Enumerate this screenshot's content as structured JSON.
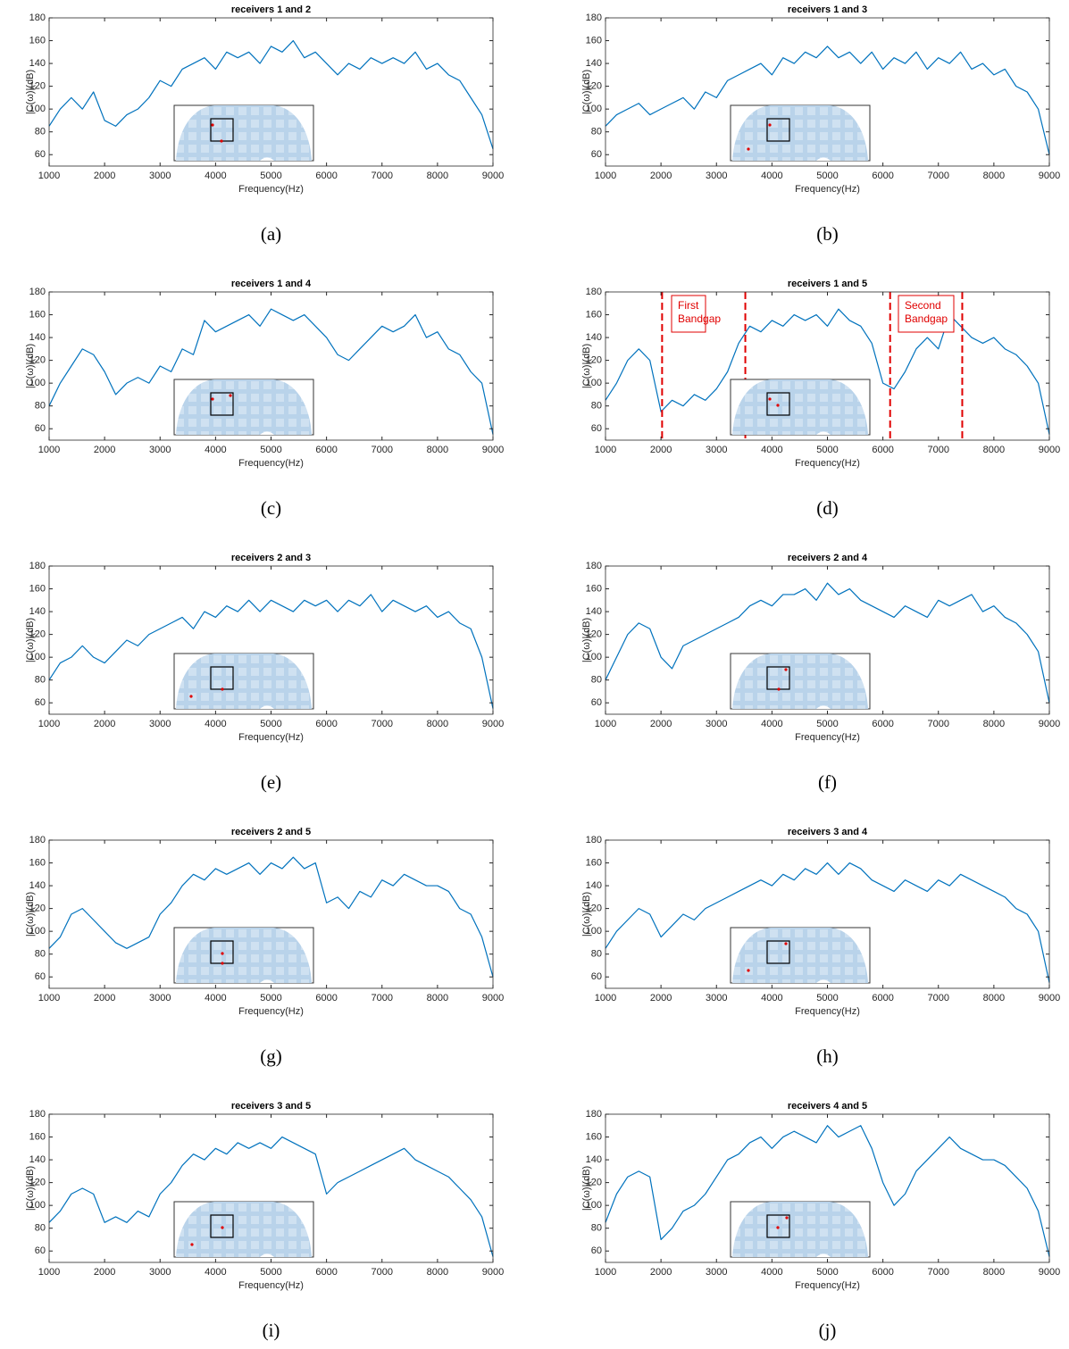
{
  "chart_data": [
    {
      "type": "line",
      "title": "receivers 1 and 2",
      "caption": "(a)",
      "x_label": "Frequency(Hz)",
      "y_label": "|C(ω)|(dB)",
      "x": [
        1000,
        1200,
        1400,
        1600,
        1800,
        2000,
        2200,
        2400,
        2600,
        2800,
        3000,
        3200,
        3400,
        3600,
        3800,
        4000,
        4200,
        4400,
        4600,
        4800,
        5000,
        5200,
        5400,
        5600,
        5800,
        6000,
        6200,
        6400,
        6600,
        6800,
        7000,
        7200,
        7400,
        7600,
        7800,
        8000,
        8200,
        8400,
        8600,
        8800,
        9000
      ],
      "series": [
        {
          "color": "#0072bd",
          "values": [
            85,
            100,
            110,
            100,
            115,
            90,
            85,
            95,
            100,
            110,
            125,
            120,
            135,
            140,
            145,
            135,
            150,
            145,
            150,
            140,
            155,
            150,
            160,
            145,
            150,
            140,
            130,
            140,
            135,
            145,
            140,
            145,
            140,
            150,
            135,
            140,
            130,
            125,
            110,
            95,
            65
          ]
        }
      ],
      "xlim": [
        1000,
        9000
      ],
      "xticks": [
        1000,
        2000,
        3000,
        4000,
        5000,
        6000,
        7000,
        8000,
        9000
      ],
      "ylim": [
        50,
        180
      ],
      "yticks": [
        60,
        80,
        100,
        120,
        140,
        160,
        180
      ]
    },
    {
      "type": "line",
      "title": "receivers 1 and 3",
      "caption": "(b)",
      "x_label": "Frequency(Hz)",
      "y_label": "|C(ω)|(dB)",
      "x": [
        1000,
        1200,
        1400,
        1600,
        1800,
        2000,
        2200,
        2400,
        2600,
        2800,
        3000,
        3200,
        3400,
        3600,
        3800,
        4000,
        4200,
        4400,
        4600,
        4800,
        5000,
        5200,
        5400,
        5600,
        5800,
        6000,
        6200,
        6400,
        6600,
        6800,
        7000,
        7200,
        7400,
        7600,
        7800,
        8000,
        8200,
        8400,
        8600,
        8800,
        9000
      ],
      "series": [
        {
          "color": "#0072bd",
          "values": [
            85,
            95,
            100,
            105,
            95,
            100,
            105,
            110,
            100,
            115,
            110,
            125,
            130,
            135,
            140,
            130,
            145,
            140,
            150,
            145,
            155,
            145,
            150,
            140,
            150,
            135,
            145,
            140,
            150,
            135,
            145,
            140,
            150,
            135,
            140,
            130,
            135,
            120,
            115,
            100,
            60
          ]
        }
      ],
      "xlim": [
        1000,
        9000
      ],
      "xticks": [
        1000,
        2000,
        3000,
        4000,
        5000,
        6000,
        7000,
        8000,
        9000
      ],
      "ylim": [
        50,
        180
      ],
      "yticks": [
        60,
        80,
        100,
        120,
        140,
        160,
        180
      ]
    },
    {
      "type": "line",
      "title": "receivers 1 and 4",
      "caption": "(c)",
      "x_label": "Frequency(Hz)",
      "y_label": "|C(ω)|(dB)",
      "x": [
        1000,
        1200,
        1400,
        1600,
        1800,
        2000,
        2200,
        2400,
        2600,
        2800,
        3000,
        3200,
        3400,
        3600,
        3800,
        4000,
        4200,
        4400,
        4600,
        4800,
        5000,
        5200,
        5400,
        5600,
        5800,
        6000,
        6200,
        6400,
        6600,
        6800,
        7000,
        7200,
        7400,
        7600,
        7800,
        8000,
        8200,
        8400,
        8600,
        8800,
        9000
      ],
      "series": [
        {
          "color": "#0072bd",
          "values": [
            80,
            100,
            115,
            130,
            125,
            110,
            90,
            100,
            105,
            100,
            115,
            110,
            130,
            125,
            155,
            145,
            150,
            155,
            160,
            150,
            165,
            160,
            155,
            160,
            150,
            140,
            125,
            120,
            130,
            140,
            150,
            145,
            150,
            160,
            140,
            145,
            130,
            125,
            110,
            100,
            55
          ]
        }
      ],
      "xlim": [
        1000,
        9000
      ],
      "xticks": [
        1000,
        2000,
        3000,
        4000,
        5000,
        6000,
        7000,
        8000,
        9000
      ],
      "ylim": [
        50,
        180
      ],
      "yticks": [
        60,
        80,
        100,
        120,
        140,
        160,
        180
      ]
    },
    {
      "type": "line",
      "title": "receivers 1 and 5",
      "caption": "(d)",
      "x_label": "Frequency(Hz)",
      "y_label": "|C(ω)|(dB)",
      "x": [
        1000,
        1200,
        1400,
        1600,
        1800,
        2000,
        2200,
        2400,
        2600,
        2800,
        3000,
        3200,
        3400,
        3600,
        3800,
        4000,
        4200,
        4400,
        4600,
        4800,
        5000,
        5200,
        5400,
        5600,
        5800,
        6000,
        6200,
        6400,
        6600,
        6800,
        7000,
        7200,
        7400,
        7600,
        7800,
        8000,
        8200,
        8400,
        8600,
        8800,
        9000
      ],
      "series": [
        {
          "color": "#0072bd",
          "values": [
            85,
            100,
            120,
            130,
            120,
            75,
            85,
            80,
            90,
            85,
            95,
            110,
            135,
            150,
            145,
            155,
            150,
            160,
            155,
            160,
            150,
            165,
            155,
            150,
            135,
            100,
            95,
            110,
            130,
            140,
            130,
            160,
            150,
            140,
            135,
            140,
            130,
            125,
            115,
            100,
            55
          ]
        }
      ],
      "xlim": [
        1000,
        9000
      ],
      "xticks": [
        1000,
        2000,
        3000,
        4000,
        5000,
        6000,
        7000,
        8000,
        9000
      ],
      "ylim": [
        50,
        180
      ],
      "yticks": [
        60,
        80,
        100,
        120,
        140,
        160,
        180
      ],
      "vlines": [
        2020,
        3520,
        6130,
        7430
      ],
      "vline_color": "#e00000",
      "annotations": [
        [
          "First",
          "Bandgap"
        ],
        [
          "Second",
          "Bandgap"
        ]
      ]
    },
    {
      "type": "line",
      "title": "receivers 2 and 3",
      "caption": "(e)",
      "x_label": "Frequency(Hz)",
      "y_label": "|C(ω)|(dB)",
      "x": [
        1000,
        1200,
        1400,
        1600,
        1800,
        2000,
        2200,
        2400,
        2600,
        2800,
        3000,
        3200,
        3400,
        3600,
        3800,
        4000,
        4200,
        4400,
        4600,
        4800,
        5000,
        5200,
        5400,
        5600,
        5800,
        6000,
        6200,
        6400,
        6600,
        6800,
        7000,
        7200,
        7400,
        7600,
        7800,
        8000,
        8200,
        8400,
        8600,
        8800,
        9000
      ],
      "series": [
        {
          "color": "#0072bd",
          "values": [
            80,
            95,
            100,
            110,
            100,
            95,
            105,
            115,
            110,
            120,
            125,
            130,
            135,
            125,
            140,
            135,
            145,
            140,
            150,
            140,
            150,
            145,
            140,
            150,
            145,
            150,
            140,
            150,
            145,
            155,
            140,
            150,
            145,
            140,
            145,
            135,
            140,
            130,
            125,
            100,
            55
          ]
        }
      ],
      "xlim": [
        1000,
        9000
      ],
      "xticks": [
        1000,
        2000,
        3000,
        4000,
        5000,
        6000,
        7000,
        8000,
        9000
      ],
      "ylim": [
        50,
        180
      ],
      "yticks": [
        60,
        80,
        100,
        120,
        140,
        160,
        180
      ]
    },
    {
      "type": "line",
      "title": "receivers 2 and 4",
      "caption": "(f)",
      "x_label": "Frequency(Hz)",
      "y_label": "|C(ω)|(dB)",
      "x": [
        1000,
        1200,
        1400,
        1600,
        1800,
        2000,
        2200,
        2400,
        2600,
        2800,
        3000,
        3200,
        3400,
        3600,
        3800,
        4000,
        4200,
        4400,
        4600,
        4800,
        5000,
        5200,
        5400,
        5600,
        5800,
        6000,
        6200,
        6400,
        6600,
        6800,
        7000,
        7200,
        7400,
        7600,
        7800,
        8000,
        8200,
        8400,
        8600,
        8800,
        9000
      ],
      "series": [
        {
          "color": "#0072bd",
          "values": [
            80,
            100,
            120,
            130,
            125,
            100,
            90,
            110,
            115,
            120,
            125,
            130,
            135,
            145,
            150,
            145,
            155,
            155,
            160,
            150,
            165,
            155,
            160,
            150,
            145,
            140,
            135,
            145,
            140,
            135,
            150,
            145,
            150,
            155,
            140,
            145,
            135,
            130,
            120,
            105,
            60
          ]
        }
      ],
      "xlim": [
        1000,
        9000
      ],
      "xticks": [
        1000,
        2000,
        3000,
        4000,
        5000,
        6000,
        7000,
        8000,
        9000
      ],
      "ylim": [
        50,
        180
      ],
      "yticks": [
        60,
        80,
        100,
        120,
        140,
        160,
        180
      ]
    },
    {
      "type": "line",
      "title": "receivers 2 and 5",
      "caption": "(g)",
      "x_label": "Frequency(Hz)",
      "y_label": "|C(ω)|(dB)",
      "x": [
        1000,
        1200,
        1400,
        1600,
        1800,
        2000,
        2200,
        2400,
        2600,
        2800,
        3000,
        3200,
        3400,
        3600,
        3800,
        4000,
        4200,
        4400,
        4600,
        4800,
        5000,
        5200,
        5400,
        5600,
        5800,
        6000,
        6200,
        6400,
        6600,
        6800,
        7000,
        7200,
        7400,
        7600,
        7800,
        8000,
        8200,
        8400,
        8600,
        8800,
        9000
      ],
      "series": [
        {
          "color": "#0072bd",
          "values": [
            85,
            95,
            115,
            120,
            110,
            100,
            90,
            85,
            90,
            95,
            115,
            125,
            140,
            150,
            145,
            155,
            150,
            155,
            160,
            150,
            160,
            155,
            165,
            155,
            160,
            125,
            130,
            120,
            135,
            130,
            145,
            140,
            150,
            145,
            140,
            140,
            135,
            120,
            115,
            95,
            60
          ]
        }
      ],
      "xlim": [
        1000,
        9000
      ],
      "xticks": [
        1000,
        2000,
        3000,
        4000,
        5000,
        6000,
        7000,
        8000,
        9000
      ],
      "ylim": [
        50,
        180
      ],
      "yticks": [
        60,
        80,
        100,
        120,
        140,
        160,
        180
      ]
    },
    {
      "type": "line",
      "title": "receivers 3 and 4",
      "caption": "(h)",
      "x_label": "Frequency(Hz)",
      "y_label": "|C(ω)|(dB)",
      "x": [
        1000,
        1200,
        1400,
        1600,
        1800,
        2000,
        2200,
        2400,
        2600,
        2800,
        3000,
        3200,
        3400,
        3600,
        3800,
        4000,
        4200,
        4400,
        4600,
        4800,
        5000,
        5200,
        5400,
        5600,
        5800,
        6000,
        6200,
        6400,
        6600,
        6800,
        7000,
        7200,
        7400,
        7600,
        7800,
        8000,
        8200,
        8400,
        8600,
        8800,
        9000
      ],
      "series": [
        {
          "color": "#0072bd",
          "values": [
            85,
            100,
            110,
            120,
            115,
            95,
            105,
            115,
            110,
            120,
            125,
            130,
            135,
            140,
            145,
            140,
            150,
            145,
            155,
            150,
            160,
            150,
            160,
            155,
            145,
            140,
            135,
            145,
            140,
            135,
            145,
            140,
            150,
            145,
            140,
            135,
            130,
            120,
            115,
            100,
            55
          ]
        }
      ],
      "xlim": [
        1000,
        9000
      ],
      "xticks": [
        1000,
        2000,
        3000,
        4000,
        5000,
        6000,
        7000,
        8000,
        9000
      ],
      "ylim": [
        50,
        180
      ],
      "yticks": [
        60,
        80,
        100,
        120,
        140,
        160,
        180
      ]
    },
    {
      "type": "line",
      "title": "receivers 3 and 5",
      "caption": "(i)",
      "x_label": "Frequency(Hz)",
      "y_label": "|C(ω)|(dB)",
      "x": [
        1000,
        1200,
        1400,
        1600,
        1800,
        2000,
        2200,
        2400,
        2600,
        2800,
        3000,
        3200,
        3400,
        3600,
        3800,
        4000,
        4200,
        4400,
        4600,
        4800,
        5000,
        5200,
        5400,
        5600,
        5800,
        6000,
        6200,
        6400,
        6600,
        6800,
        7000,
        7200,
        7400,
        7600,
        7800,
        8000,
        8200,
        8400,
        8600,
        8800,
        9000
      ],
      "series": [
        {
          "color": "#0072bd",
          "values": [
            85,
            95,
            110,
            115,
            110,
            85,
            90,
            85,
            95,
            90,
            110,
            120,
            135,
            145,
            140,
            150,
            145,
            155,
            150,
            155,
            150,
            160,
            155,
            150,
            145,
            110,
            120,
            125,
            130,
            135,
            140,
            145,
            150,
            140,
            135,
            130,
            125,
            115,
            105,
            90,
            55
          ]
        }
      ],
      "xlim": [
        1000,
        9000
      ],
      "xticks": [
        1000,
        2000,
        3000,
        4000,
        5000,
        6000,
        7000,
        8000,
        9000
      ],
      "ylim": [
        50,
        180
      ],
      "yticks": [
        60,
        80,
        100,
        120,
        140,
        160,
        180
      ]
    },
    {
      "type": "line",
      "title": "receivers 4 and 5",
      "caption": "(j)",
      "x_label": "Frequency(Hz)",
      "y_label": "|C(ω)|(dB)",
      "x": [
        1000,
        1200,
        1400,
        1600,
        1800,
        2000,
        2200,
        2400,
        2600,
        2800,
        3000,
        3200,
        3400,
        3600,
        3800,
        4000,
        4200,
        4400,
        4600,
        4800,
        5000,
        5200,
        5400,
        5600,
        5800,
        6000,
        6200,
        6400,
        6600,
        6800,
        7000,
        7200,
        7400,
        7600,
        7800,
        8000,
        8200,
        8400,
        8600,
        8800,
        9000
      ],
      "series": [
        {
          "color": "#0072bd",
          "values": [
            85,
            110,
            125,
            130,
            125,
            70,
            80,
            95,
            100,
            110,
            125,
            140,
            145,
            155,
            160,
            150,
            160,
            165,
            160,
            155,
            170,
            160,
            165,
            170,
            150,
            120,
            100,
            110,
            130,
            140,
            150,
            160,
            150,
            145,
            140,
            140,
            135,
            125,
            115,
            95,
            55
          ]
        }
      ],
      "xlim": [
        1000,
        9000
      ],
      "xticks": [
        1000,
        2000,
        3000,
        4000,
        5000,
        6000,
        7000,
        8000,
        9000
      ],
      "ylim": [
        50,
        180
      ],
      "yticks": [
        60,
        80,
        100,
        120,
        140,
        160,
        180
      ]
    }
  ]
}
